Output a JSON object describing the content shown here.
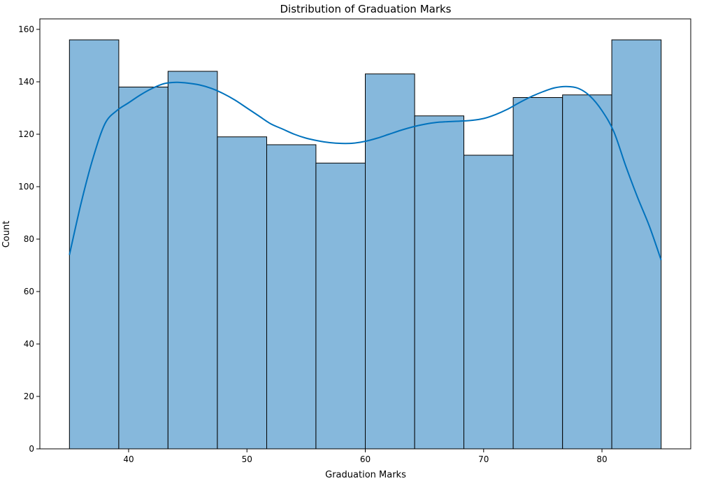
{
  "chart_data": {
    "type": "bar",
    "subtype": "histogram_with_kde",
    "title": "Distribution of Graduation Marks",
    "xlabel": "Graduation Marks",
    "ylabel": "Count",
    "xlim": [
      32.5,
      87.5
    ],
    "ylim": [
      0,
      164
    ],
    "xticks": [
      40,
      50,
      60,
      70,
      80
    ],
    "yticks": [
      0,
      20,
      40,
      60,
      80,
      100,
      120,
      140,
      160
    ],
    "bins": [
      {
        "x0": 35.0,
        "x1": 39.17,
        "count": 156
      },
      {
        "x0": 39.17,
        "x1": 43.33,
        "count": 138
      },
      {
        "x0": 43.33,
        "x1": 47.5,
        "count": 144
      },
      {
        "x0": 47.5,
        "x1": 51.67,
        "count": 119
      },
      {
        "x0": 51.67,
        "x1": 55.83,
        "count": 116
      },
      {
        "x0": 55.83,
        "x1": 60.0,
        "count": 109
      },
      {
        "x0": 60.0,
        "x1": 64.17,
        "count": 143
      },
      {
        "x0": 64.17,
        "x1": 68.33,
        "count": 127
      },
      {
        "x0": 68.33,
        "x1": 72.5,
        "count": 112
      },
      {
        "x0": 72.5,
        "x1": 76.67,
        "count": 134
      },
      {
        "x0": 76.67,
        "x1": 80.83,
        "count": 135
      },
      {
        "x0": 80.83,
        "x1": 85.0,
        "count": 156
      }
    ],
    "kde": {
      "x": [
        35,
        36,
        37,
        38,
        39,
        40,
        41,
        42,
        43,
        44,
        45,
        46,
        47,
        48,
        49,
        50,
        51,
        52,
        53,
        54,
        55,
        56,
        57,
        58,
        59,
        60,
        61,
        62,
        63,
        64,
        65,
        66,
        67,
        68,
        69,
        70,
        71,
        72,
        73,
        74,
        75,
        76,
        77,
        78,
        79,
        80,
        81,
        82,
        83,
        84,
        85
      ],
      "y": [
        74,
        94,
        111,
        124,
        129,
        132,
        135,
        137.5,
        139.3,
        139.8,
        139.5,
        138.8,
        137.5,
        135.5,
        133,
        130,
        127,
        124,
        122,
        120,
        118.5,
        117.5,
        116.8,
        116.5,
        116.6,
        117.3,
        118.5,
        120,
        121.5,
        122.8,
        123.8,
        124.5,
        124.8,
        125.0,
        125.3,
        126,
        127.5,
        129.5,
        132,
        134.3,
        136.2,
        137.7,
        138.2,
        137.5,
        134.5,
        129,
        121,
        108,
        96,
        85,
        72
      ]
    },
    "colors": {
      "bar_fill": "#86b8dc",
      "bar_edge": "#000000",
      "kde_line": "#0072bd"
    }
  }
}
